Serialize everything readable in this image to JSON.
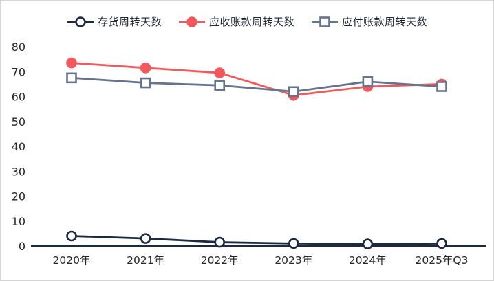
{
  "frame": {
    "background": "#ffffff",
    "border_color": "#d4d4d4"
  },
  "chart_data": {
    "type": "line",
    "title": "",
    "xlabel": "",
    "ylabel": "",
    "x": [
      "2020年",
      "2021年",
      "2022年",
      "2023年",
      "2024年",
      "2025年Q3"
    ],
    "series": [
      {
        "name": "存货周转天数",
        "color": "#1b2942",
        "marker": "circle-open",
        "values": [
          4,
          3,
          1.5,
          1,
          0.8,
          1
        ]
      },
      {
        "name": "应收账款周转天数",
        "color": "#f2585c",
        "marker": "circle-filled",
        "values": [
          73.5,
          71.5,
          69.5,
          60.5,
          64,
          65
        ]
      },
      {
        "name": "应付账款周转天数",
        "color": "#64748f",
        "marker": "square-open",
        "values": [
          67.5,
          65.5,
          64.5,
          62,
          66,
          64
        ]
      }
    ],
    "ylim": [
      0,
      80
    ],
    "yticks": [
      0,
      10,
      20,
      30,
      40,
      50,
      60,
      70,
      80
    ],
    "legend_position": "top",
    "grid": false,
    "axis_color": "#1b2942",
    "tick_label_color": "#262626"
  }
}
